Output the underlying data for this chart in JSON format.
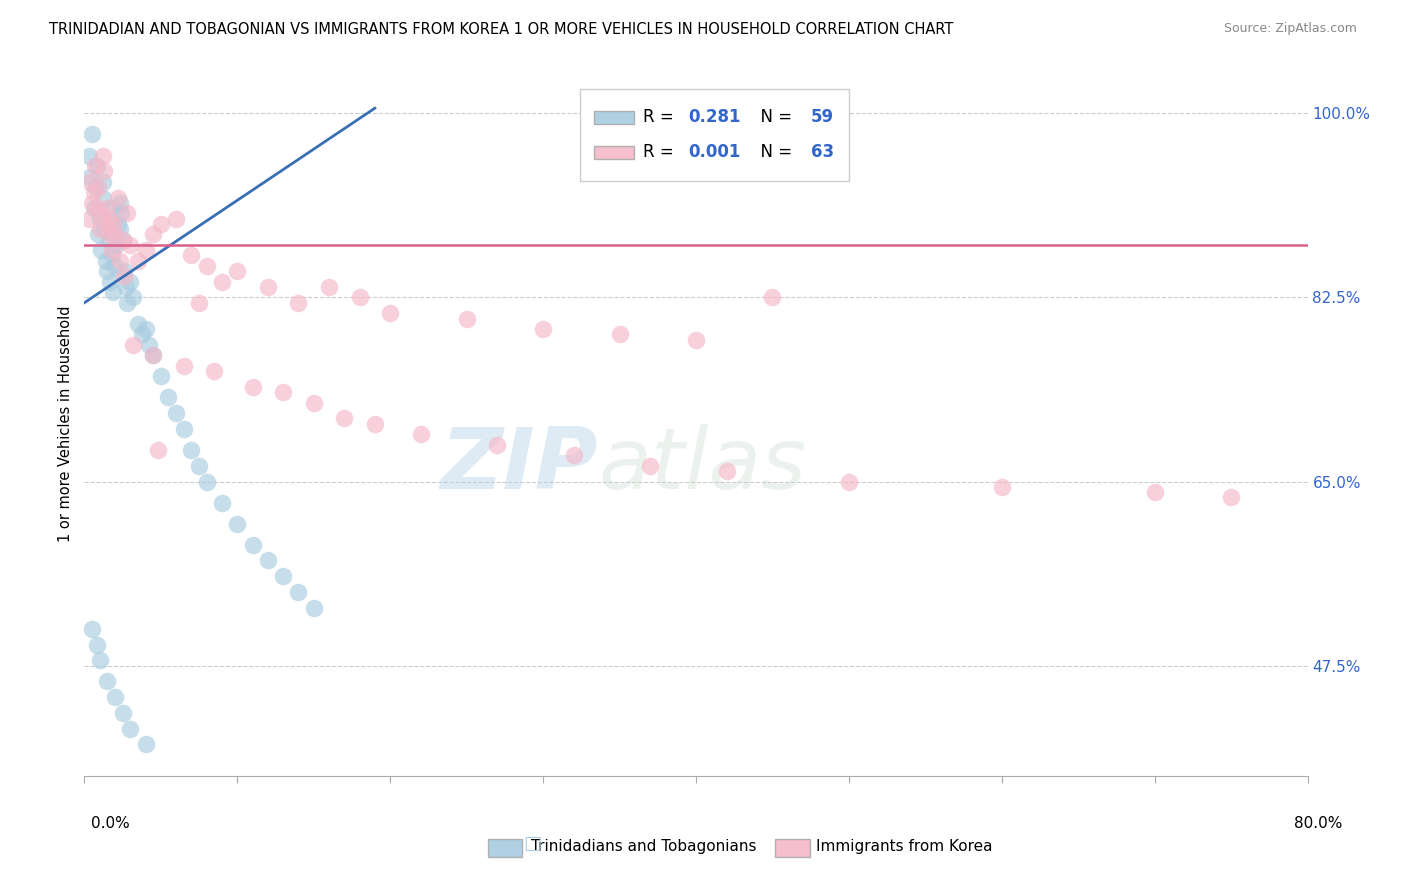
{
  "title": "TRINIDADIAN AND TOBAGONIAN VS IMMIGRANTS FROM KOREA 1 OR MORE VEHICLES IN HOUSEHOLD CORRELATION CHART",
  "source": "Source: ZipAtlas.com",
  "ylabel": "1 or more Vehicles in Household",
  "y_ticks": [
    47.5,
    65.0,
    82.5,
    100.0
  ],
  "y_tick_labels": [
    "47.5%",
    "65.0%",
    "82.5%",
    "100.0%"
  ],
  "xlim": [
    0.0,
    80.0
  ],
  "ylim": [
    37.0,
    104.0
  ],
  "blue_color": "#a8cce0",
  "pink_color": "#f4b8c8",
  "line_blue": "#3a6fb5",
  "line_pink": "#d9608a",
  "watermark_zip": "ZIP",
  "watermark_atlas": "atlas",
  "blue_scatter_x": [
    0.3,
    0.4,
    0.5,
    0.6,
    0.7,
    0.8,
    0.9,
    1.0,
    1.1,
    1.2,
    1.3,
    1.4,
    1.5,
    1.6,
    1.7,
    1.8,
    1.9,
    2.0,
    2.1,
    2.2,
    2.3,
    2.4,
    2.5,
    2.6,
    2.7,
    2.8,
    3.0,
    3.2,
    3.5,
    3.8,
    4.0,
    4.2,
    4.5,
    5.0,
    5.5,
    6.0,
    6.5,
    7.0,
    7.5,
    8.0,
    9.0,
    10.0,
    11.0,
    12.0,
    13.0,
    14.0,
    15.0,
    0.5,
    0.8,
    1.0,
    1.5,
    2.0,
    2.5,
    3.0,
    4.0,
    1.2,
    1.8,
    2.3
  ],
  "blue_scatter_y": [
    96.0,
    94.0,
    98.0,
    91.0,
    93.0,
    95.0,
    88.5,
    90.0,
    87.0,
    92.0,
    89.0,
    86.0,
    85.0,
    88.0,
    84.0,
    86.5,
    83.0,
    85.5,
    87.5,
    89.5,
    91.5,
    90.5,
    88.0,
    85.0,
    83.5,
    82.0,
    84.0,
    82.5,
    80.0,
    79.0,
    79.5,
    78.0,
    77.0,
    75.0,
    73.0,
    71.5,
    70.0,
    68.0,
    66.5,
    65.0,
    63.0,
    61.0,
    59.0,
    57.5,
    56.0,
    54.5,
    53.0,
    51.0,
    49.5,
    48.0,
    46.0,
    44.5,
    43.0,
    41.5,
    40.0,
    93.5,
    91.0,
    89.0
  ],
  "pink_scatter_x": [
    0.3,
    0.5,
    0.7,
    0.9,
    1.0,
    1.2,
    1.3,
    1.5,
    1.7,
    1.9,
    2.0,
    2.2,
    2.5,
    2.8,
    3.0,
    3.5,
    4.0,
    4.5,
    5.0,
    6.0,
    7.0,
    8.0,
    9.0,
    10.0,
    12.0,
    14.0,
    16.0,
    18.0,
    20.0,
    25.0,
    30.0,
    35.0,
    40.0,
    0.6,
    0.8,
    1.1,
    1.4,
    1.6,
    1.8,
    2.3,
    3.2,
    4.5,
    6.5,
    8.5,
    11.0,
    13.0,
    15.0,
    17.0,
    19.0,
    22.0,
    27.0,
    32.0,
    37.0,
    42.0,
    50.0,
    60.0,
    70.0,
    75.0,
    0.4,
    2.6,
    4.8,
    7.5,
    45.0
  ],
  "pink_scatter_y": [
    90.0,
    91.5,
    95.0,
    93.0,
    89.0,
    96.0,
    94.5,
    91.0,
    90.0,
    89.5,
    88.5,
    92.0,
    88.0,
    90.5,
    87.5,
    86.0,
    87.0,
    88.5,
    89.5,
    90.0,
    86.5,
    85.5,
    84.0,
    85.0,
    83.5,
    82.0,
    83.5,
    82.5,
    81.0,
    80.5,
    79.5,
    79.0,
    78.5,
    92.5,
    91.0,
    90.5,
    89.5,
    88.5,
    87.0,
    86.0,
    78.0,
    77.0,
    76.0,
    75.5,
    74.0,
    73.5,
    72.5,
    71.0,
    70.5,
    69.5,
    68.5,
    67.5,
    66.5,
    66.0,
    65.0,
    64.5,
    64.0,
    63.5,
    93.5,
    84.5,
    68.0,
    82.0,
    82.5
  ],
  "blue_line_x": [
    0.0,
    19.0
  ],
  "blue_line_y": [
    82.0,
    100.5
  ],
  "pink_line_y": 87.5
}
